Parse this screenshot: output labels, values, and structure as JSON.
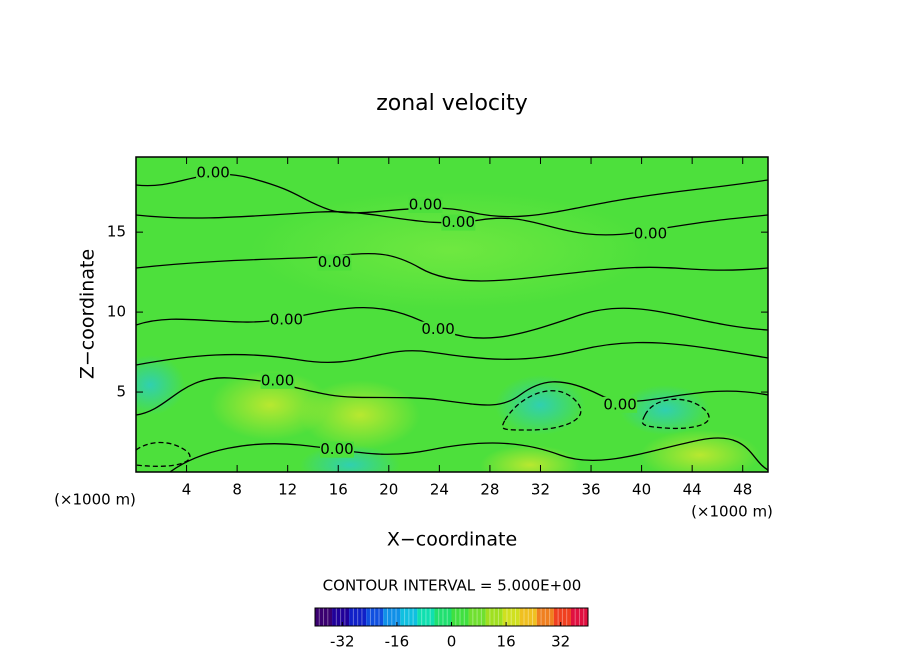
{
  "chart_data": {
    "type": "contour",
    "title": "zonal velocity",
    "x_label": "X−coordinate",
    "y_label": "Z−coordinate",
    "x_unit_label": "(×1000 m)",
    "y_unit_label": "(×1000 m)",
    "xlim": [
      0,
      50
    ],
    "xticks": [
      4,
      8,
      12,
      16,
      20,
      24,
      28,
      32,
      36,
      40,
      44,
      48
    ],
    "ylim": [
      0,
      19.7
    ],
    "yticks": [
      5,
      10,
      15
    ],
    "contour_labels": {
      "text": "0.00",
      "x": [
        6.1,
        22.9,
        25.5,
        40.7,
        15.7,
        11.9,
        23.9,
        11.2,
        38.3,
        15.9
      ],
      "y": [
        18.7,
        16.7,
        15.6,
        14.9,
        13.1,
        9.5,
        8.9,
        5.7,
        4.2,
        1.4
      ]
    },
    "contour_interval_label": "CONTOUR INTERVAL = 5.000E+00",
    "colorbar": {
      "lim": [
        -40,
        40
      ],
      "ticks": [
        -32,
        -16,
        0,
        16,
        32
      ],
      "colors": [
        "#3a0070",
        "#20009a",
        "#1020c8",
        "#1050e0",
        "#1090e8",
        "#10c0e0",
        "#10e0b0",
        "#20e070",
        "#40e040",
        "#70e030",
        "#a0e020",
        "#d0e020",
        "#f0c020",
        "#f08020",
        "#f04020",
        "#e01040"
      ]
    }
  }
}
